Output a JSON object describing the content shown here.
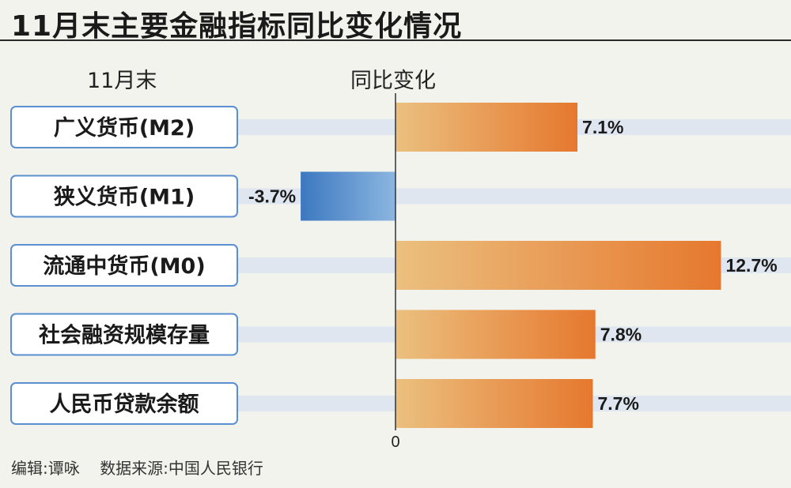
{
  "title": "11月末主要金融指标同比变化情况",
  "header": {
    "left_column": "11月末",
    "right_column": "同比变化"
  },
  "footer": {
    "editor": "编辑:谭咏",
    "source": "数据来源:中国人民银行"
  },
  "colors": {
    "positive_light": "#ebc07f",
    "positive_dark": "#e6782e",
    "negative_light": "#8cb6e0",
    "negative_dark": "#3c78c0",
    "track": "#dfe6ef",
    "label_box_border": "#5a8fd0"
  },
  "chart_data": {
    "type": "bar",
    "orientation": "horizontal",
    "categories": [
      "广义货币(M2)",
      "狭义货币(M1)",
      "流通中货币(M0)",
      "社会融资规模存量",
      "人民币贷款余额"
    ],
    "values": [
      7.1,
      -3.7,
      12.7,
      7.8,
      7.7
    ],
    "value_labels": [
      "7.1%",
      "-3.7%",
      "12.7%",
      "7.8%",
      "7.7%"
    ],
    "zero_label": "0",
    "unit": "%"
  }
}
